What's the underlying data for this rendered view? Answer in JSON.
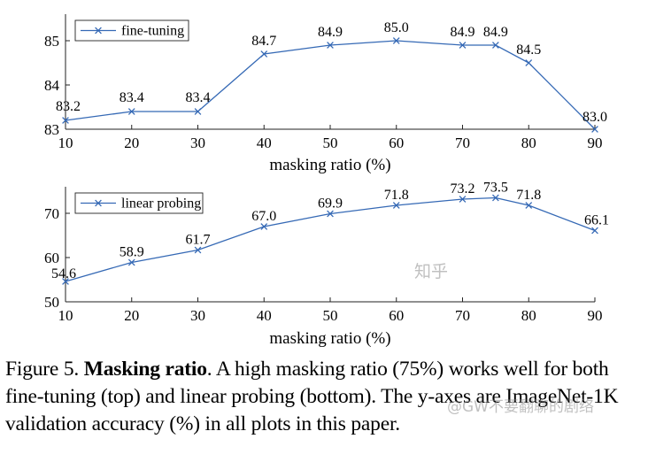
{
  "chart_data": [
    {
      "type": "line",
      "name": "top",
      "x": [
        10,
        20,
        30,
        40,
        50,
        60,
        70,
        75,
        80,
        90
      ],
      "series": [
        {
          "name": "fine-tuning",
          "values": [
            83.2,
            83.4,
            83.4,
            84.7,
            84.9,
            85.0,
            84.9,
            84.9,
            84.5,
            83.0
          ],
          "labels": [
            "83.2",
            "83.4",
            "83.4",
            "84.7",
            "84.9",
            "85.0",
            "84.9",
            "84.9",
            "84.5",
            "83.0"
          ]
        }
      ],
      "xlabel": "masking ratio (%)",
      "xlim": [
        10,
        90
      ],
      "xticks": [
        10,
        20,
        30,
        40,
        50,
        60,
        70,
        80,
        90
      ],
      "xtick_labels": [
        "10",
        "20",
        "30",
        "40",
        "50",
        "60",
        "70",
        "80",
        "90"
      ],
      "ylim": [
        83,
        85.6
      ],
      "yticks": [
        83,
        84,
        85
      ],
      "ytick_labels": [
        "83",
        "84",
        "85"
      ],
      "grid": false,
      "legend": "top-left",
      "color": "#3569b5"
    },
    {
      "type": "line",
      "name": "bottom",
      "x": [
        10,
        20,
        30,
        40,
        50,
        60,
        70,
        75,
        80,
        90
      ],
      "series": [
        {
          "name": "linear probing",
          "values": [
            54.6,
            58.9,
            61.7,
            67.0,
            69.9,
            71.8,
            73.2,
            73.5,
            71.8,
            66.1
          ],
          "labels": [
            "54.6",
            "58.9",
            "61.7",
            "67.0",
            "69.9",
            "71.8",
            "73.2",
            "73.5",
            "71.8",
            "66.1"
          ]
        }
      ],
      "xlabel": "masking ratio (%)",
      "xlim": [
        10,
        90
      ],
      "xticks": [
        10,
        20,
        30,
        40,
        50,
        60,
        70,
        80,
        90
      ],
      "xtick_labels": [
        "10",
        "20",
        "30",
        "40",
        "50",
        "60",
        "70",
        "80",
        "90"
      ],
      "ylim": [
        50,
        76
      ],
      "yticks": [
        50,
        60,
        70
      ],
      "ytick_labels": [
        "50",
        "60",
        "70"
      ],
      "grid": false,
      "legend": "top-left",
      "color": "#3569b5"
    }
  ],
  "caption": {
    "prefix": "Figure 5. ",
    "bold": "Masking ratio",
    "rest": ". A high masking ratio (75%) works well for both fine-tuning (top) and linear probing (bottom). The y-axes are ImageNet-1K validation accuracy (%) in all plots in this paper."
  },
  "watermark": {
    "site": "知乎",
    "author": "@GW不要翻聊的剧络"
  }
}
